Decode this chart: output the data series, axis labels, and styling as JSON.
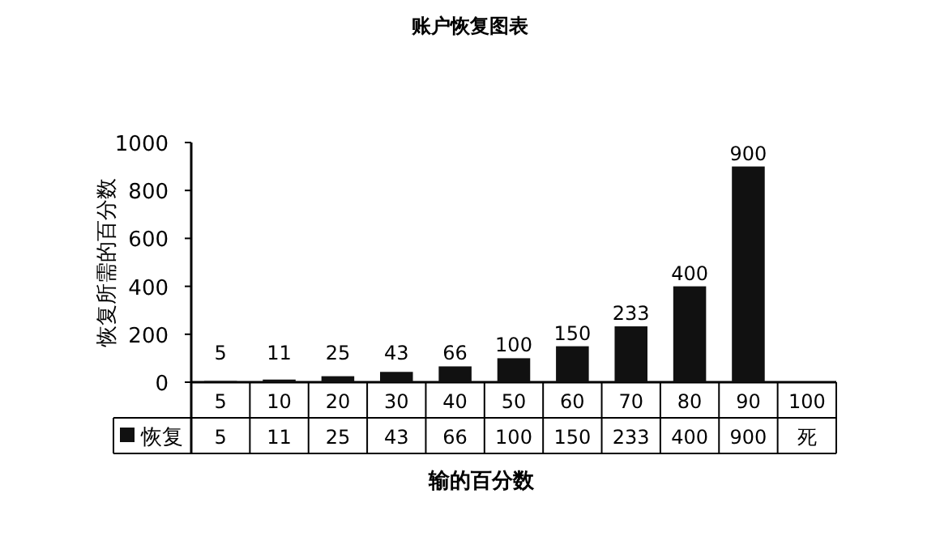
{
  "chart_data": {
    "type": "bar",
    "title": "账户恢复图表",
    "xlabel": "输的百分数",
    "ylabel": "恢复所需的百分数",
    "categories": [
      "5",
      "10",
      "20",
      "30",
      "40",
      "50",
      "60",
      "70",
      "80",
      "90",
      "100"
    ],
    "series": [
      {
        "name": "恢复",
        "color": "#111111",
        "values": [
          5,
          11,
          25,
          43,
          66,
          100,
          150,
          233,
          400,
          900,
          null
        ],
        "value_labels": [
          "5",
          "11",
          "25",
          "43",
          "66",
          "100",
          "150",
          "233",
          "400",
          "900",
          null
        ]
      }
    ],
    "ylim": [
      0,
      1000
    ],
    "yticks": [
      0,
      200,
      400,
      600,
      800,
      1000
    ],
    "legend": "bottom",
    "grid": false,
    "annotations": [
      "5",
      "11",
      "25",
      "43",
      "66",
      "100",
      "150",
      "233",
      "400",
      "900",
      "死"
    ]
  }
}
